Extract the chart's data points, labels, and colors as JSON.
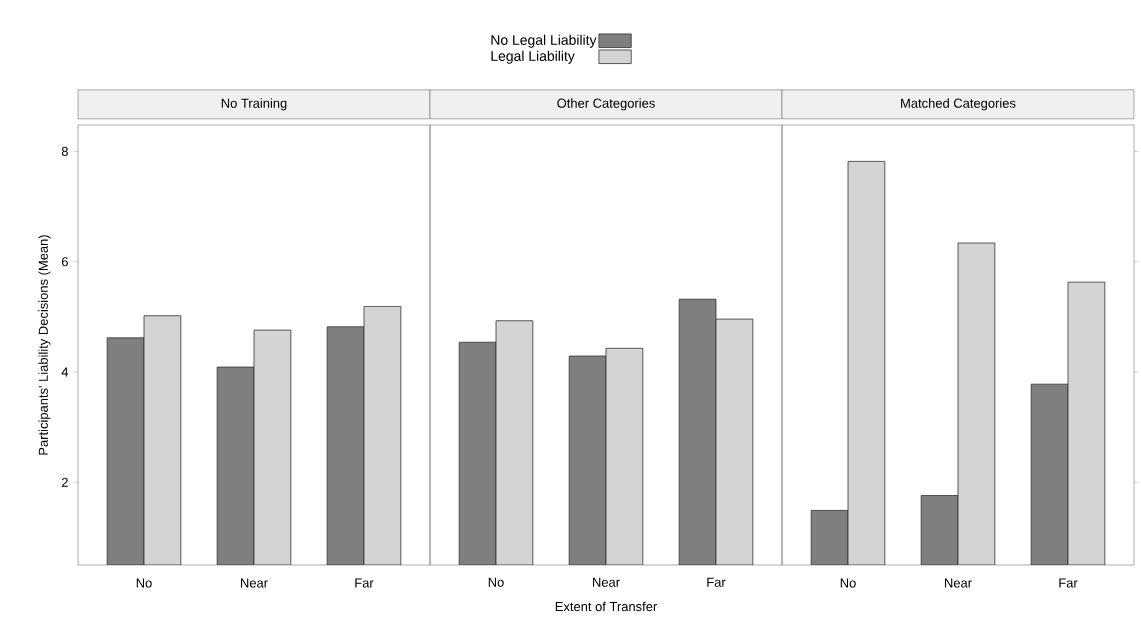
{
  "chart_data": [
    {
      "type": "bar",
      "title": "No Training",
      "ylabel": "Participants' Liability Decisions (Mean)",
      "categories": [
        "No",
        "Near",
        "Far"
      ],
      "series": [
        {
          "name": "No Legal Liability",
          "color": "#7f7f7f",
          "values": [
            4.62,
            4.09,
            4.82
          ]
        },
        {
          "name": "Legal Liability",
          "color": "#d4d4d4",
          "values": [
            5.02,
            4.76,
            5.19
          ]
        }
      ],
      "ylim": [
        0.5,
        8.48
      ],
      "yticks": [
        2,
        4,
        6,
        8
      ],
      "legend": "top"
    },
    {
      "type": "bar",
      "title": "Other Categories",
      "xlabel": "Extent of Transfer",
      "categories": [
        "No",
        "Near",
        "Far"
      ],
      "series": [
        {
          "color": "#7f7f7f",
          "values": [
            4.54,
            4.29,
            5.32
          ]
        },
        {
          "color": "#d4d4d4",
          "values": [
            4.93,
            4.43,
            4.96
          ]
        }
      ],
      "ylim": [
        0.5,
        8.48
      ],
      "tick_labels": "x"
    },
    {
      "type": "bar",
      "title": "Matched Categories",
      "categories": [
        "No",
        "Near",
        "Far"
      ],
      "series": [
        {
          "color": "#7f7f7f",
          "values": [
            1.49,
            1.76,
            3.78
          ]
        },
        {
          "color": "#d4d4d4",
          "values": [
            7.82,
            6.34,
            5.63
          ]
        }
      ],
      "ylim": [
        0.5,
        8.48
      ],
      "yticks": [
        2,
        4,
        6,
        8
      ],
      "tick_labels": "x"
    }
  ]
}
